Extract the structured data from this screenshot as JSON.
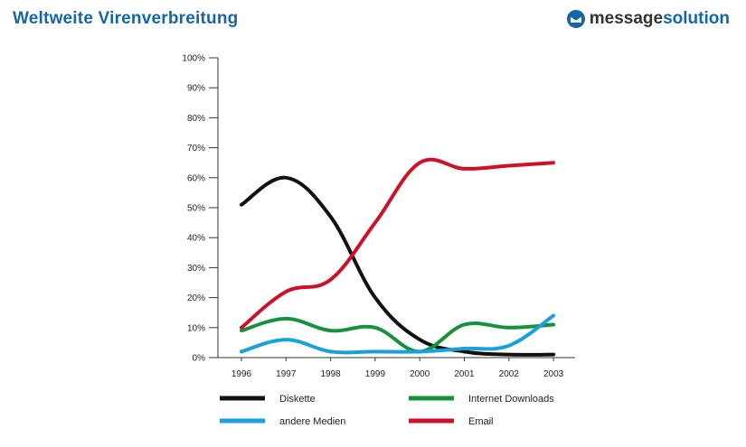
{
  "header": {
    "title": "Weltweite Virenverbreitung",
    "brand_part_a": "message",
    "brand_part_b": "solution",
    "logo_icon": "envelope-check-icon"
  },
  "chart_data": {
    "type": "line",
    "x": [
      "1996",
      "1997",
      "1998",
      "1999",
      "2000",
      "2001",
      "2002",
      "2003"
    ],
    "ylim": [
      0,
      100
    ],
    "yticks": [
      "0%",
      "10%",
      "20%",
      "30%",
      "40%",
      "50%",
      "60%",
      "70%",
      "80%",
      "90%",
      "100%"
    ],
    "grid": false,
    "legend_position": "bottom",
    "series": [
      {
        "name": "Diskette",
        "color": "#111111",
        "values": [
          51,
          60,
          47,
          20,
          6,
          2,
          1,
          1
        ]
      },
      {
        "name": "Internet Downloads",
        "color": "#16923c",
        "values": [
          9,
          13,
          9,
          10,
          2,
          11,
          10,
          11
        ]
      },
      {
        "name": "andere Medien",
        "color": "#1aa0dd",
        "values": [
          2,
          6,
          2,
          2,
          2,
          3,
          4,
          14
        ]
      },
      {
        "name": "Email",
        "color": "#d0102a",
        "values": [
          10,
          22,
          26,
          45,
          65,
          63,
          64,
          65
        ]
      }
    ]
  }
}
